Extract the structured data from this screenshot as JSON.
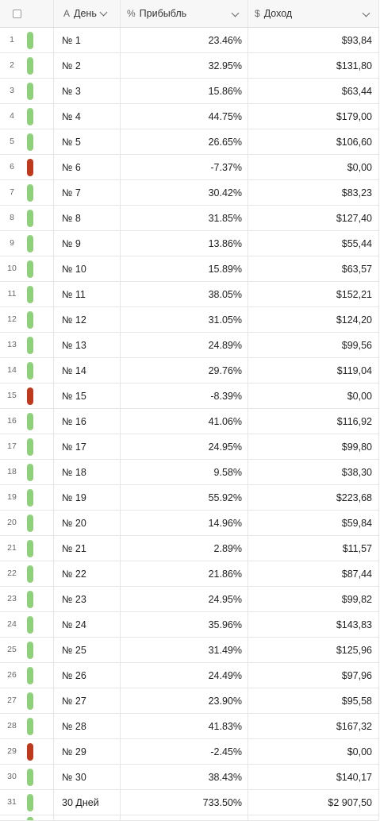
{
  "header": {
    "day_label": "День",
    "profit_label": "Прибыбль",
    "income_label": "Доход",
    "day_type_icon": "A",
    "profit_type_icon": "%",
    "income_type_icon": "$"
  },
  "colors": {
    "positive": "#8fd17a",
    "negative": "#c0391e"
  },
  "rows": [
    {
      "num": "1",
      "day": "№ 1",
      "profit": "23.46%",
      "income": "$93,84",
      "status": "positive"
    },
    {
      "num": "2",
      "day": "№ 2",
      "profit": "32.95%",
      "income": "$131,80",
      "status": "positive"
    },
    {
      "num": "3",
      "day": "№ 3",
      "profit": "15.86%",
      "income": "$63,44",
      "status": "positive"
    },
    {
      "num": "4",
      "day": "№ 4",
      "profit": "44.75%",
      "income": "$179,00",
      "status": "positive"
    },
    {
      "num": "5",
      "day": "№ 5",
      "profit": "26.65%",
      "income": "$106,60",
      "status": "positive"
    },
    {
      "num": "6",
      "day": "№ 6",
      "profit": "-7.37%",
      "income": "$0,00",
      "status": "negative"
    },
    {
      "num": "7",
      "day": "№ 7",
      "profit": "30.42%",
      "income": "$83,23",
      "status": "positive"
    },
    {
      "num": "8",
      "day": "№ 8",
      "profit": "31.85%",
      "income": "$127,40",
      "status": "positive"
    },
    {
      "num": "9",
      "day": "№ 9",
      "profit": "13.86%",
      "income": "$55,44",
      "status": "positive"
    },
    {
      "num": "10",
      "day": "№ 10",
      "profit": "15.89%",
      "income": "$63,57",
      "status": "positive"
    },
    {
      "num": "11",
      "day": "№ 11",
      "profit": "38.05%",
      "income": "$152,21",
      "status": "positive"
    },
    {
      "num": "12",
      "day": "№ 12",
      "profit": "31.05%",
      "income": "$124,20",
      "status": "positive"
    },
    {
      "num": "13",
      "day": "№ 13",
      "profit": "24.89%",
      "income": "$99,56",
      "status": "positive"
    },
    {
      "num": "14",
      "day": "№ 14",
      "profit": "29.76%",
      "income": "$119,04",
      "status": "positive"
    },
    {
      "num": "15",
      "day": "№ 15",
      "profit": "-8.39%",
      "income": "$0,00",
      "status": "negative"
    },
    {
      "num": "16",
      "day": "№ 16",
      "profit": "41.06%",
      "income": "$116,92",
      "status": "positive"
    },
    {
      "num": "17",
      "day": "№ 17",
      "profit": "24.95%",
      "income": "$99,80",
      "status": "positive"
    },
    {
      "num": "18",
      "day": "№ 18",
      "profit": "9.58%",
      "income": "$38,30",
      "status": "positive"
    },
    {
      "num": "19",
      "day": "№ 19",
      "profit": "55.92%",
      "income": "$223,68",
      "status": "positive"
    },
    {
      "num": "20",
      "day": "№ 20",
      "profit": "14.96%",
      "income": "$59,84",
      "status": "positive"
    },
    {
      "num": "21",
      "day": "№ 21",
      "profit": "2.89%",
      "income": "$11,57",
      "status": "positive"
    },
    {
      "num": "22",
      "day": "№ 22",
      "profit": "21.86%",
      "income": "$87,44",
      "status": "positive"
    },
    {
      "num": "23",
      "day": "№ 23",
      "profit": "24.95%",
      "income": "$99,82",
      "status": "positive"
    },
    {
      "num": "24",
      "day": "№ 24",
      "profit": "35.96%",
      "income": "$143,83",
      "status": "positive"
    },
    {
      "num": "25",
      "day": "№ 25",
      "profit": "31.49%",
      "income": "$125,96",
      "status": "positive"
    },
    {
      "num": "26",
      "day": "№ 26",
      "profit": "24.49%",
      "income": "$97,96",
      "status": "positive"
    },
    {
      "num": "27",
      "day": "№ 27",
      "profit": "23.90%",
      "income": "$95,58",
      "status": "positive"
    },
    {
      "num": "28",
      "day": "№ 28",
      "profit": "41.83%",
      "income": "$167,32",
      "status": "positive"
    },
    {
      "num": "29",
      "day": "№ 29",
      "profit": "-2.45%",
      "income": "$0,00",
      "status": "negative"
    },
    {
      "num": "30",
      "day": "№ 30",
      "profit": "38.43%",
      "income": "$140,17",
      "status": "positive"
    },
    {
      "num": "31",
      "day": "30 Дней",
      "profit": "733.50%",
      "income": "$2 907,50",
      "status": "positive"
    }
  ]
}
